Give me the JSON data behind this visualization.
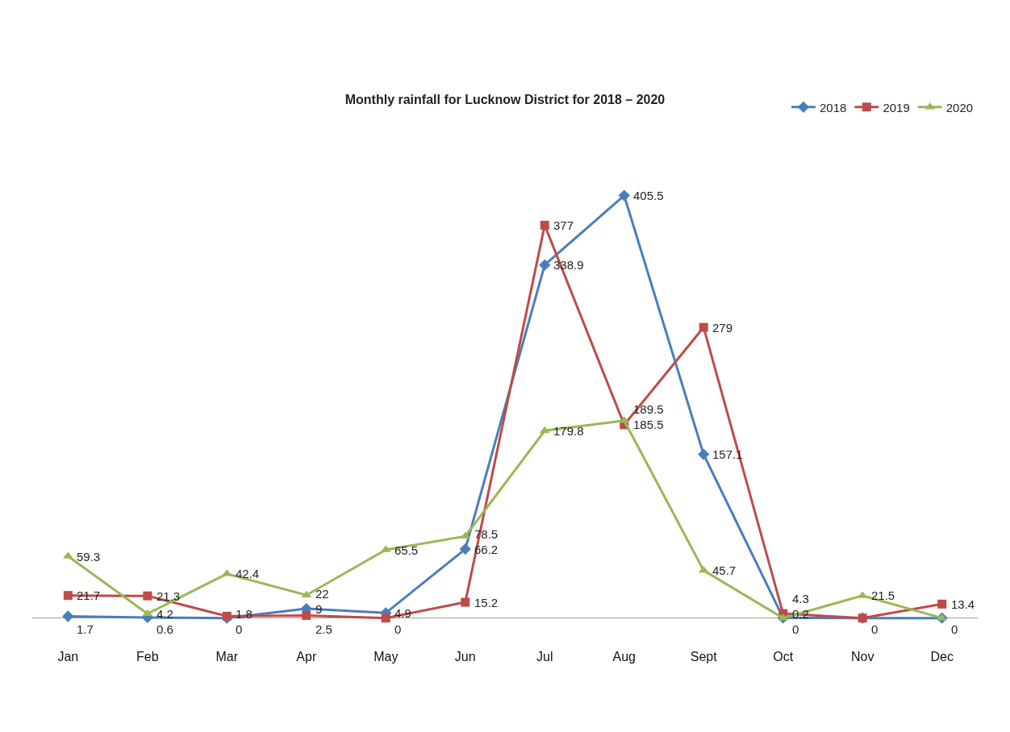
{
  "chart_data": {
    "type": "line",
    "title": "Monthly rainfall for Lucknow District for 2018 – 2020",
    "categories": [
      "Jan",
      "Feb",
      "Mar",
      "Apr",
      "May",
      "Jun",
      "Jul",
      "Aug",
      "Sept",
      "Oct",
      "Nov",
      "Dec"
    ],
    "series": [
      {
        "name": "2018",
        "color": "#4a7ebb",
        "marker": "diamond",
        "values": [
          1.7,
          0.6,
          0,
          9,
          4.9,
          66.2,
          338.9,
          405.5,
          157.1,
          0.2,
          0,
          0
        ],
        "value_labels": [
          "1.7",
          "0.6",
          "0",
          "9",
          "4.9",
          "66.2",
          "338.9",
          "405.5",
          "157.1",
          "0.2",
          null,
          null
        ]
      },
      {
        "name": "2019",
        "color": "#be4b48",
        "marker": "square",
        "values": [
          21.7,
          21.3,
          1.8,
          2.5,
          0,
          15.2,
          377,
          185.5,
          279,
          4.3,
          0,
          13.4
        ],
        "value_labels": [
          "21.7",
          "21.3",
          "1.8",
          "2.5",
          "0",
          "15.2",
          "377",
          "185.5",
          "279",
          "4.3",
          "0",
          "13.4"
        ]
      },
      {
        "name": "2020",
        "color": "#98b954",
        "marker": "triangle",
        "values": [
          59.3,
          4.2,
          42.4,
          22,
          65.5,
          78.5,
          179.8,
          189.5,
          45.7,
          0,
          21.5,
          0
        ],
        "value_labels": [
          "59.3",
          "4.2",
          "42.4",
          "22",
          "65.5",
          "78.5",
          "179.8",
          "189.5",
          "45.7",
          "0",
          "21.5",
          "0"
        ]
      }
    ],
    "legend": "top right",
    "tick_labels": "x"
  }
}
